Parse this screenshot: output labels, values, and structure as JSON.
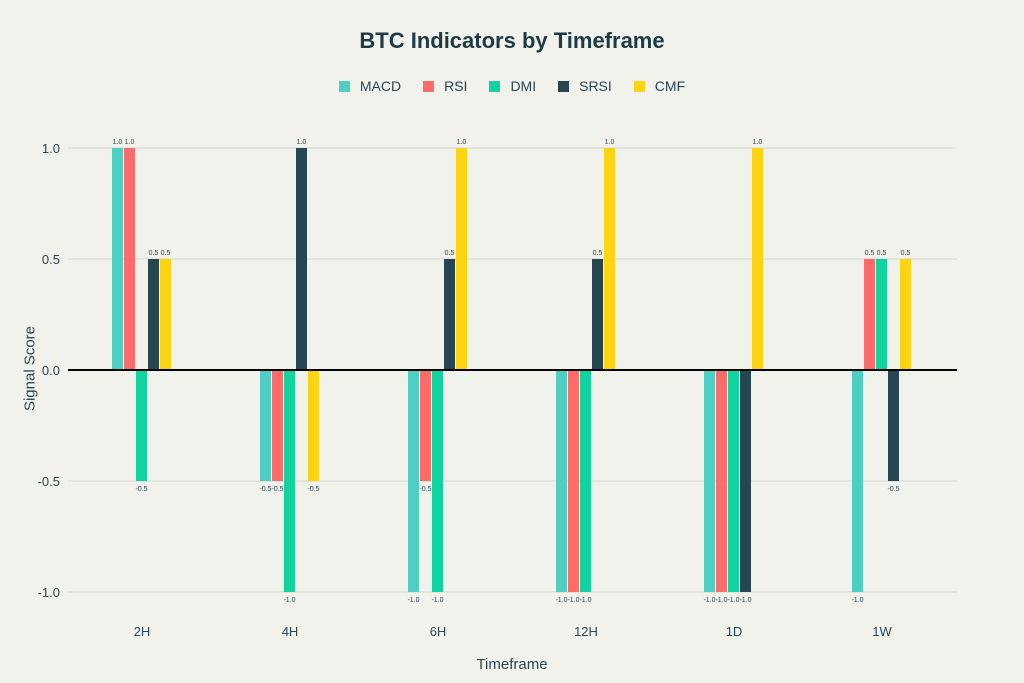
{
  "chart_data": {
    "type": "bar",
    "title": "BTC Indicators by Timeframe",
    "xlabel": "Timeframe",
    "ylabel": "Signal Score",
    "ylim": [
      -1.0,
      1.0
    ],
    "yticks": [
      "1.0",
      "0.5",
      "0.0",
      "-0.5",
      "-1.0"
    ],
    "grid": true,
    "legend_position": "top",
    "categories": [
      "2H",
      "4H",
      "6H",
      "12H",
      "1D",
      "1W"
    ],
    "series": [
      {
        "name": "MACD",
        "color": "#4fcfc4",
        "values": [
          1.0,
          -0.5,
          -1.0,
          -1.0,
          -1.0,
          -1.0
        ]
      },
      {
        "name": "RSI",
        "color": "#fd6b6b",
        "values": [
          1.0,
          -0.5,
          -0.5,
          -1.0,
          -1.0,
          0.5
        ]
      },
      {
        "name": "DMI",
        "color": "#10d39f",
        "values": [
          -0.5,
          -1.0,
          -1.0,
          -1.0,
          -1.0,
          0.5
        ]
      },
      {
        "name": "SRSI",
        "color": "#264652",
        "values": [
          0.5,
          1.0,
          0.5,
          0.5,
          -1.0,
          -0.5
        ]
      },
      {
        "name": "CMF",
        "color": "#fdd412",
        "values": [
          0.5,
          -0.5,
          1.0,
          1.0,
          1.0,
          0.5
        ]
      }
    ]
  }
}
